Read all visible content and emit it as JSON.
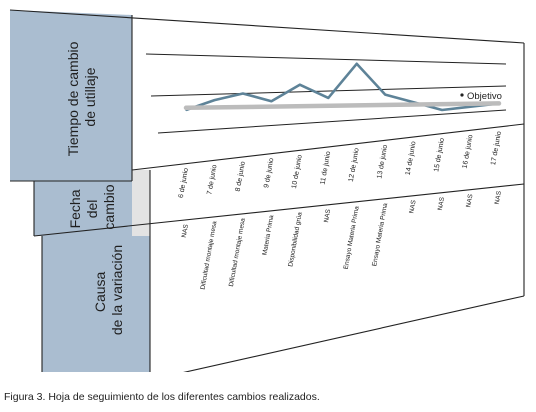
{
  "row_labels": {
    "changeover_time": [
      "Tiempo de cambio",
      "de utillaje"
    ],
    "change_date": [
      "Fecha",
      "del",
      "cambio"
    ],
    "variation_cause": [
      "Causa",
      "de la variación"
    ]
  },
  "caption": "Figura 3. Hoja de seguimiento de los diferentes cambios realizados.",
  "colors": {
    "header_fill": "#aabdd0",
    "date_band_fill": "#e3e3e3",
    "series_line": "#5e8398",
    "target_line": "#bcbcbc",
    "grid_line": "#222222"
  },
  "chart_data": {
    "type": "line",
    "title": "",
    "xlabel": "",
    "ylabel": "Tiempo de cambio de utillaje",
    "ylim": [
      0,
      10
    ],
    "grid": "horizontal reference lines",
    "x": [
      "6 de junio",
      "7 de junio",
      "8 de junio",
      "9 de junio",
      "10 de junio",
      "11 de junio",
      "12 de junio",
      "13 de junio",
      "14 de junio",
      "15 de junio",
      "16 de junio",
      "17 de junio"
    ],
    "causes": [
      "NAS",
      "Dificultad montaje mesa",
      "Dificultad montaje mesa",
      "Materia Prima",
      "Disponibilidad grúa",
      "NAS",
      "Ensayo Materia Prima",
      "Ensayo Materia Prima",
      "NAS",
      "NAS",
      "NAS",
      "NAS"
    ],
    "series": [
      {
        "values": [
          4.0,
          4.9,
          5.5,
          4.8,
          6.3,
          5.1,
          8.2,
          5.4,
          4.7,
          4.0,
          4.3,
          4.6
        ]
      }
    ],
    "target": {
      "label": "Objetivo",
      "start": 4.2,
      "end": 4.6
    }
  }
}
